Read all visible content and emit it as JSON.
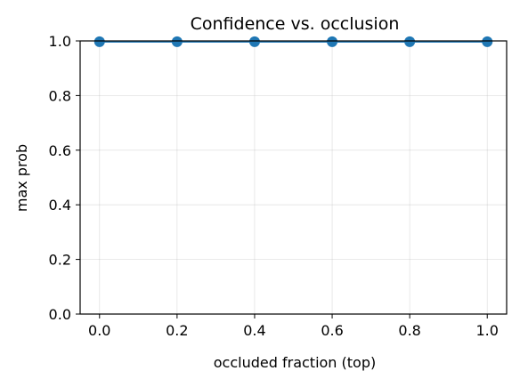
{
  "chart_data": {
    "type": "line",
    "title": "Confidence vs. occlusion",
    "xlabel": "occluded fraction (top)",
    "ylabel": "max prob",
    "x": [
      0.0,
      0.2,
      0.4,
      0.6,
      0.8,
      1.0
    ],
    "xlim": [
      -0.05,
      1.05
    ],
    "ylim": [
      0.0,
      1.0
    ],
    "xticks": [
      0.0,
      0.2,
      0.4,
      0.6,
      0.8,
      1.0
    ],
    "xtick_labels": [
      "0.0",
      "0.2",
      "0.4",
      "0.6",
      "0.8",
      "1.0"
    ],
    "yticks": [
      0.0,
      0.2,
      0.4,
      0.6,
      0.8,
      1.0
    ],
    "ytick_labels": [
      "0.0",
      "0.2",
      "0.4",
      "0.6",
      "0.8",
      "1.0"
    ],
    "grid": true,
    "markers": true,
    "series": [
      {
        "values": [
          0.997,
          0.997,
          0.997,
          0.997,
          0.997,
          0.997
        ],
        "color": "#1f77b4"
      }
    ]
  }
}
